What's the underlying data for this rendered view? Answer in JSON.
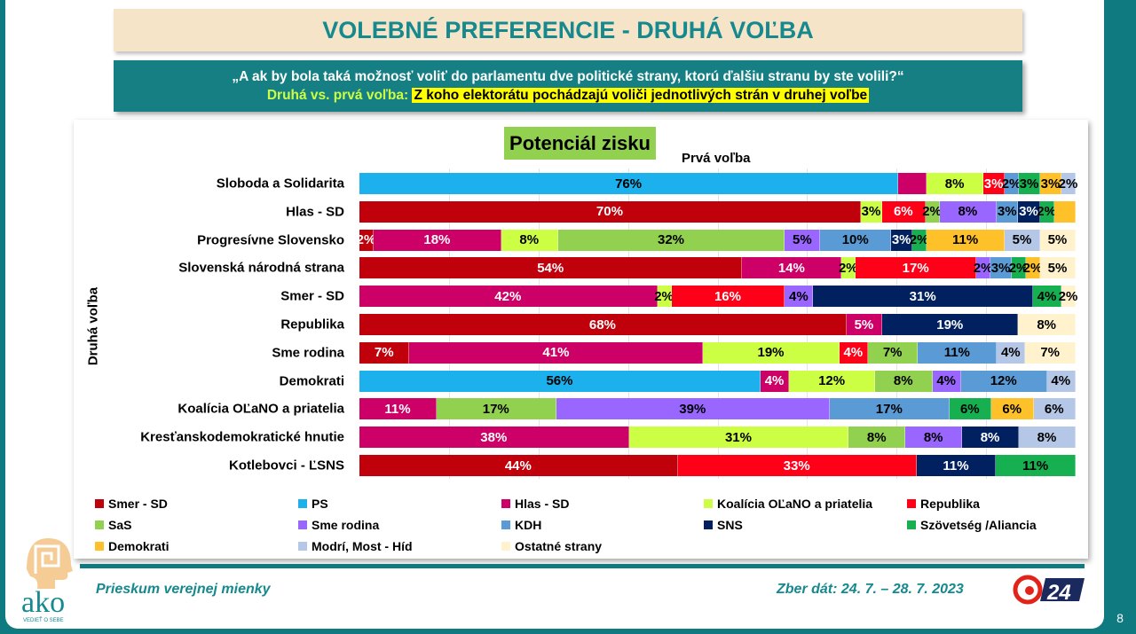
{
  "header": {
    "title": "VOLEBNÉ PREFERENCIE - DRUHÁ VOĽBA",
    "question": "„A ak by bola taká možnosť voliť do parlamentu dve politické strany, ktorú ďalšiu stranu by ste volili?“",
    "subtitle_lead": "Druhá vs. prvá voľba:",
    "subtitle_highlight": "Z koho elektorátu pochádzajú voliči jednotlivých strán v druhej voľbe"
  },
  "footer": {
    "survey": "Prieskum verejnej mienky",
    "dates": "Zber dát: 24. 7. – 28. 7. 2023",
    "page": "8",
    "logo_text": "ako",
    "logo_tagline": "VEDIEŤ O SEBE",
    "partner_logo": "24"
  },
  "chart_data": {
    "type": "bar",
    "orientation": "horizontal",
    "stacked": "100%",
    "title": "Potenciál zisku",
    "xlabel": "Prvá voľba",
    "ylabel": "Druhá voľba",
    "grid": true,
    "legend_position": "bottom",
    "parties": [
      {
        "name": "Smer - SD",
        "color": "#c0000b",
        "text": "#ffffff"
      },
      {
        "name": "PS",
        "color": "#1cb0ec",
        "text": "#000000"
      },
      {
        "name": "Hlas - SD",
        "color": "#cc0066",
        "text": "#ffffff"
      },
      {
        "name": "Koalícia OĽaNO a priatelia",
        "color": "#ccff44",
        "text": "#000000"
      },
      {
        "name": "Republika",
        "color": "#ff0019",
        "text": "#ffffff"
      },
      {
        "name": "SaS",
        "color": "#92d050",
        "text": "#000000"
      },
      {
        "name": "Sme rodina",
        "color": "#9966ff",
        "text": "#000000"
      },
      {
        "name": "KDH",
        "color": "#5b9bd5",
        "text": "#000000"
      },
      {
        "name": "SNS",
        "color": "#002060",
        "text": "#ffffff"
      },
      {
        "name": "Szövetség /Aliancia",
        "color": "#16b050",
        "text": "#000000"
      },
      {
        "name": "Demokrati",
        "color": "#ffc12a",
        "text": "#000000"
      },
      {
        "name": "Modrí, Most - Híd",
        "color": "#b4c7e7",
        "text": "#000000"
      },
      {
        "name": "Ostatné strany",
        "color": "#fff2cc",
        "text": "#000000"
      }
    ],
    "rows": [
      {
        "label": "Sloboda a Solidarita",
        "segments": [
          {
            "party": 1,
            "value": 76
          },
          {
            "party": 2,
            "value": 4,
            "label_shown": false
          },
          {
            "party": 3,
            "value": 8
          },
          {
            "party": 4,
            "value": 3
          },
          {
            "party": 7,
            "value": 2
          },
          {
            "party": 9,
            "value": 3
          },
          {
            "party": 10,
            "value": 3
          },
          {
            "party": 11,
            "value": 2
          }
        ]
      },
      {
        "label": "Hlas - SD",
        "segments": [
          {
            "party": 0,
            "value": 70
          },
          {
            "party": 3,
            "value": 3
          },
          {
            "party": 4,
            "value": 6
          },
          {
            "party": 5,
            "value": 2
          },
          {
            "party": 6,
            "value": 8
          },
          {
            "party": 7,
            "value": 3
          },
          {
            "party": 8,
            "value": 3
          },
          {
            "party": 9,
            "value": 2
          },
          {
            "party": 10,
            "value": 3,
            "label_shown": false
          }
        ]
      },
      {
        "label": "Progresívne Slovensko",
        "segments": [
          {
            "party": 0,
            "value": 2
          },
          {
            "party": 2,
            "value": 18
          },
          {
            "party": 3,
            "value": 8
          },
          {
            "party": 5,
            "value": 32
          },
          {
            "party": 6,
            "value": 5
          },
          {
            "party": 7,
            "value": 10
          },
          {
            "party": 8,
            "value": 3
          },
          {
            "party": 9,
            "value": 2
          },
          {
            "party": 10,
            "value": 11
          },
          {
            "party": 11,
            "value": 5
          },
          {
            "party": 12,
            "value": 5
          }
        ]
      },
      {
        "label": "Slovenská národná strana",
        "segments": [
          {
            "party": 0,
            "value": 54
          },
          {
            "party": 2,
            "value": 14
          },
          {
            "party": 3,
            "value": 2
          },
          {
            "party": 4,
            "value": 17
          },
          {
            "party": 6,
            "value": 2
          },
          {
            "party": 7,
            "value": 3
          },
          {
            "party": 9,
            "value": 2
          },
          {
            "party": 10,
            "value": 2
          },
          {
            "party": 12,
            "value": 5
          }
        ]
      },
      {
        "label": "Smer - SD",
        "segments": [
          {
            "party": 2,
            "value": 42
          },
          {
            "party": 3,
            "value": 2
          },
          {
            "party": 4,
            "value": 16
          },
          {
            "party": 6,
            "value": 4
          },
          {
            "party": 8,
            "value": 31
          },
          {
            "party": 9,
            "value": 4
          },
          {
            "party": 12,
            "value": 2
          }
        ]
      },
      {
        "label": "Republika",
        "segments": [
          {
            "party": 0,
            "value": 68
          },
          {
            "party": 2,
            "value": 5
          },
          {
            "party": 8,
            "value": 19
          },
          {
            "party": 12,
            "value": 8
          }
        ]
      },
      {
        "label": "Sme rodina",
        "segments": [
          {
            "party": 0,
            "value": 7
          },
          {
            "party": 2,
            "value": 41
          },
          {
            "party": 3,
            "value": 19
          },
          {
            "party": 4,
            "value": 4
          },
          {
            "party": 5,
            "value": 7
          },
          {
            "party": 7,
            "value": 11
          },
          {
            "party": 11,
            "value": 4
          },
          {
            "party": 12,
            "value": 7
          }
        ]
      },
      {
        "label": "Demokrati",
        "segments": [
          {
            "party": 1,
            "value": 56
          },
          {
            "party": 2,
            "value": 4
          },
          {
            "party": 3,
            "value": 12
          },
          {
            "party": 5,
            "value": 8
          },
          {
            "party": 6,
            "value": 4
          },
          {
            "party": 7,
            "value": 12
          },
          {
            "party": 11,
            "value": 4
          }
        ]
      },
      {
        "label": "Koalícia OĽaNO a priatelia",
        "segments": [
          {
            "party": 2,
            "value": 11
          },
          {
            "party": 5,
            "value": 17
          },
          {
            "party": 6,
            "value": 39
          },
          {
            "party": 7,
            "value": 17
          },
          {
            "party": 9,
            "value": 6
          },
          {
            "party": 10,
            "value": 6
          },
          {
            "party": 11,
            "value": 6
          }
        ]
      },
      {
        "label": "Kresťanskodemokratické hnutie",
        "segments": [
          {
            "party": 2,
            "value": 38
          },
          {
            "party": 3,
            "value": 31
          },
          {
            "party": 5,
            "value": 8
          },
          {
            "party": 6,
            "value": 8
          },
          {
            "party": 8,
            "value": 8
          },
          {
            "party": 11,
            "value": 8
          }
        ]
      },
      {
        "label": "Kotlebovci - ĽSNS",
        "segments": [
          {
            "party": 0,
            "value": 44
          },
          {
            "party": 4,
            "value": 33
          },
          {
            "party": 8,
            "value": 11
          },
          {
            "party": 9,
            "value": 11
          }
        ]
      }
    ]
  }
}
